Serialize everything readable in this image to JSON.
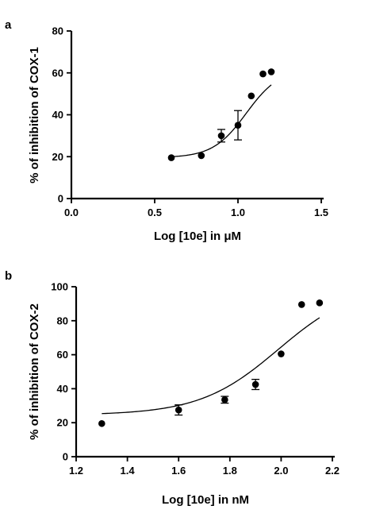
{
  "chart_data": [
    {
      "panel_label": "a",
      "type": "scatter",
      "xlabel": "Log [10e] in μM",
      "ylabel": "% of inhibition of COX-1",
      "xlim": [
        0,
        1.5
      ],
      "ylim": [
        0,
        80
      ],
      "x_ticks": [
        0.0,
        0.5,
        1.0,
        1.5
      ],
      "x_tick_labels": [
        "0.0",
        "0.5",
        "1.0",
        "1.5"
      ],
      "y_ticks": [
        0,
        20,
        40,
        60,
        80
      ],
      "y_tick_labels": [
        "0",
        "20",
        "40",
        "60",
        "80"
      ],
      "points": [
        {
          "x": 0.6,
          "y": 19.5,
          "err": 0
        },
        {
          "x": 0.78,
          "y": 20.5,
          "err": 0
        },
        {
          "x": 0.9,
          "y": 30.0,
          "err": 3
        },
        {
          "x": 1.0,
          "y": 35.0,
          "err": 7
        },
        {
          "x": 1.08,
          "y": 49.0,
          "err": 0
        },
        {
          "x": 1.15,
          "y": 59.5,
          "err": 0
        },
        {
          "x": 1.2,
          "y": 60.5,
          "err": 0
        }
      ],
      "fit": {
        "bottom": 19.5,
        "top": 62.0,
        "logEC50": 1.05,
        "hill": 10,
        "x_from": 0.6,
        "x_to": 1.2
      },
      "grid": false
    },
    {
      "panel_label": "b",
      "type": "scatter",
      "xlabel": "Log [10e] in nM",
      "ylabel": "% of inhibition of COX-2",
      "xlim": [
        1.2,
        2.2
      ],
      "ylim": [
        0,
        100
      ],
      "x_ticks": [
        1.2,
        1.4,
        1.6,
        1.8,
        2.0,
        2.2
      ],
      "x_tick_labels": [
        "1.2",
        "1.4",
        "1.6",
        "1.8",
        "2.0",
        "2.2"
      ],
      "y_ticks": [
        0,
        20,
        40,
        60,
        80,
        100
      ],
      "y_tick_labels": [
        "0",
        "20",
        "40",
        "60",
        "80",
        "100"
      ],
      "points": [
        {
          "x": 1.3,
          "y": 19.5,
          "err": 0
        },
        {
          "x": 1.6,
          "y": 27.5,
          "err": 3
        },
        {
          "x": 1.78,
          "y": 33.5,
          "err": 2
        },
        {
          "x": 1.9,
          "y": 42.5,
          "err": 3
        },
        {
          "x": 2.0,
          "y": 60.5,
          "err": 0
        },
        {
          "x": 2.08,
          "y": 89.5,
          "err": 0
        },
        {
          "x": 2.15,
          "y": 90.5,
          "err": 0
        }
      ],
      "fit": {
        "bottom": 24.5,
        "top": 102.0,
        "logEC50": 1.99,
        "hill": 6.5,
        "x_from": 1.3,
        "x_to": 2.15
      },
      "grid": false
    }
  ]
}
